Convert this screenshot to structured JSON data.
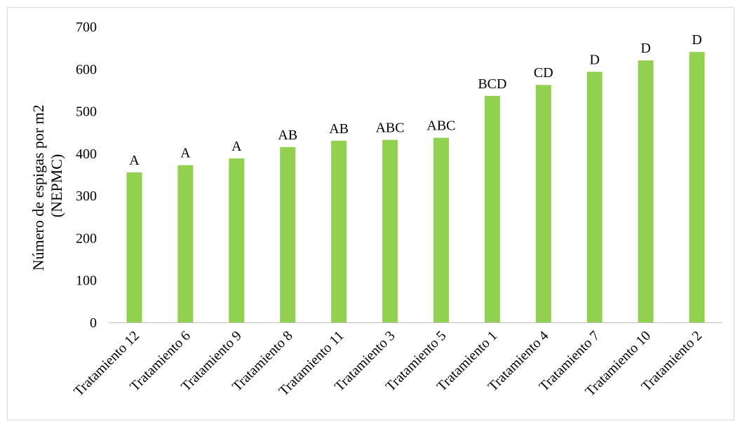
{
  "chart_data": {
    "type": "bar",
    "title": "",
    "xlabel": "",
    "ylabel_line1": "Número de espigas por m2",
    "ylabel_line2": "(NEPMC)",
    "ylim": [
      0,
      700
    ],
    "yticks": [
      "0",
      "100",
      "200",
      "300",
      "400",
      "500",
      "600",
      "700"
    ],
    "grid": false,
    "legend": "none",
    "bar_color": "#92d050",
    "categories": [
      "Tratamiento 12",
      "Tratamiento 6",
      "Tratamiento 9",
      "Tratamiento 8",
      "Tratamiento 11",
      "Tratamiento 3",
      "Tratamiento 5",
      "Tratamiento 1",
      "Tratamiento 4",
      "Tratamiento 7",
      "Tratamiento 10",
      "Tratamiento 2"
    ],
    "values": [
      355,
      372,
      388,
      415,
      430,
      432,
      437,
      536,
      562,
      593,
      620,
      640
    ],
    "letters": [
      "A",
      "A",
      "A",
      "AB",
      "AB",
      "ABC",
      "ABC",
      "BCD",
      "CD",
      "D",
      "D",
      "D"
    ]
  }
}
